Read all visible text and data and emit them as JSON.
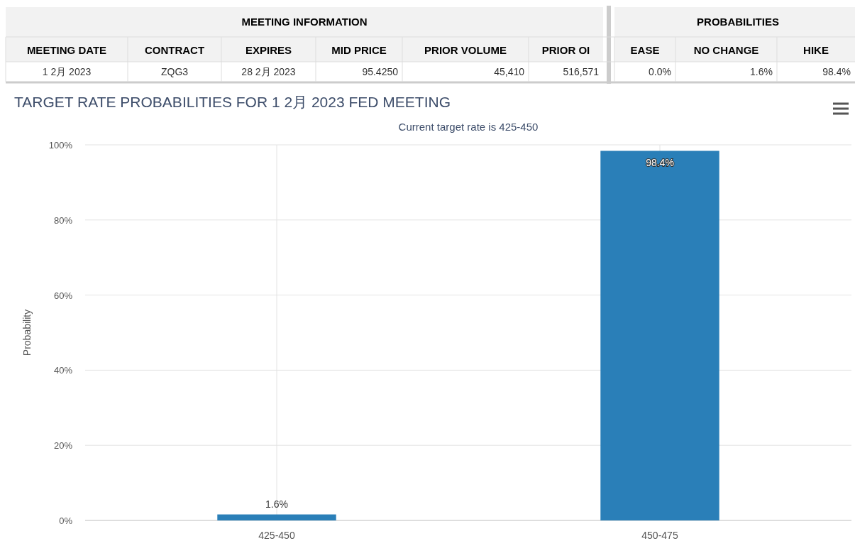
{
  "chart_data": [
    {
      "type": "other",
      "annotations": [
        "MEETING INFORMATION",
        "PROBABILITIES",
        "MEETING DATE",
        "CONTRACT",
        "EXPIRES",
        "MID PRICE",
        "PRIOR VOLUME",
        "PRIOR OI",
        "EASE",
        "NO CHANGE",
        "HIKE",
        "1 2月 2023",
        "ZQG3",
        "28 2月 2023",
        "95.4250",
        "45,410",
        "516,571",
        "0.0%",
        "1.6%",
        "98.4%"
      ]
    },
    {
      "type": "bar",
      "title": "TARGET RATE PROBABILITIES FOR 1 2月 2023 FED MEETING",
      "subtitle": "Current target rate is 425-450",
      "ylabel": "Probability",
      "categories": [
        "425-450",
        "450-475"
      ],
      "values": [
        1.6,
        98.4
      ],
      "value_labels": [
        "1.6%",
        "98.4%"
      ],
      "color": "#2a7fb8",
      "ylim": [
        0,
        100
      ],
      "yticks": [
        {
          "value": 0,
          "label": "0%"
        },
        {
          "value": 20,
          "label": "20%"
        },
        {
          "value": 40,
          "label": "40%"
        },
        {
          "value": 60,
          "label": "60%"
        },
        {
          "value": 80,
          "label": "80%"
        },
        {
          "value": 100,
          "label": "100%"
        }
      ],
      "grid": true
    }
  ]
}
